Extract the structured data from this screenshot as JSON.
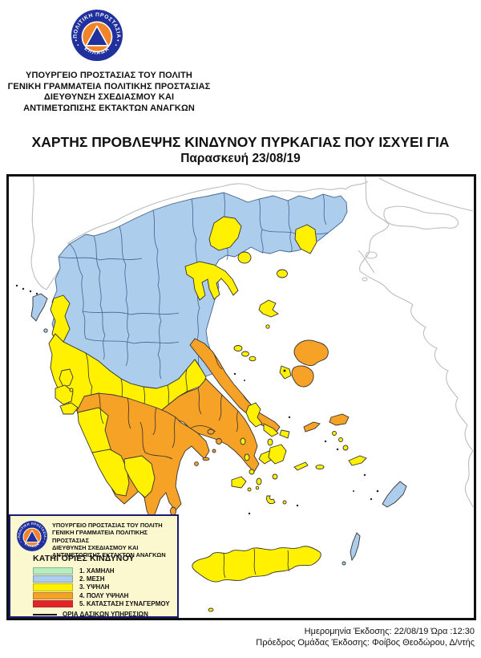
{
  "logo": {
    "ring_top": "ΠΟΛΙΤΙΚΗ ΠΡΟΣΤΑΣΙΑ",
    "ring_bottom": "ΕΛΛΑΔΑ"
  },
  "header": {
    "line1": "ΥΠΟΥΡΓΕΙΟ ΠΡΟΣΤΑΣΙΑΣ ΤΟΥ ΠΟΛΙΤΗ",
    "line2": "ΓΕΝΙΚΗ ΓΡΑΜΜΑΤΕΙΑ ΠΟΛΙΤΙΚΗΣ ΠΡΟΣΤΑΣΙΑΣ",
    "line3": "ΔΙΕΥΘΥΝΣΗ ΣΧΕΔΙΑΣΜΟΥ ΚΑΙ",
    "line4": "ΑΝΤΙΜΕΤΩΠΙΣΗΣ ΕΚΤΑΚΤΩΝ ΑΝΑΓΚΩΝ"
  },
  "title": {
    "line1": "ΧΑΡΤΗΣ ΠΡΟΒΛΕΨΗΣ ΚΙΝΔΥΝΟΥ ΠΥΡΚΑΓΙΑΣ ΠΟΥ ΙΣΧΥΕΙ ΓΙΑ",
    "line2": "Παρασκευή 23/08/19"
  },
  "legend": {
    "heading": "ΚΑΤΗΓΟΡΙΕΣ ΚΙΝΔΥΝΟΥ",
    "categories": [
      {
        "label": "1. ΧΑΜΗΛΗ",
        "color": "#b5efc0"
      },
      {
        "label": "2. ΜΕΣΗ",
        "color": "#adcdec"
      },
      {
        "label": "3. ΥΨΗΛΗ",
        "color": "#fff100"
      },
      {
        "label": "4. ΠΟΛΥ ΥΨΗΛΗ",
        "color": "#f5a227"
      },
      {
        "label": "5. ΚΑΤΑΣΤΑΣΗ ΣΥΝΑΓΕΡΜΟΥ",
        "color": "#e52525"
      }
    ],
    "boundary_label": "ΟΡΙΑ ΔΑΣΙΚΩΝ ΥΠΗΡΕΣΙΩΝ",
    "background": "#fbf7cf",
    "border_color": "#1a1a70"
  },
  "map": {
    "frame_color": "#101010",
    "sea_color": "#ffffff",
    "foreign_coast_color": "#bdbdbd",
    "region_border_color": "#333333",
    "north_region_border_color": "#41638e"
  },
  "footer": {
    "line1": "Ημερομηνία Έκδοσης: 22/08/19  Ώρα :12:30",
    "line2": "Πρόεδρος Ομάδας Έκδοσης: Φοίβος Θεοδώρου, Δ/ντής"
  }
}
